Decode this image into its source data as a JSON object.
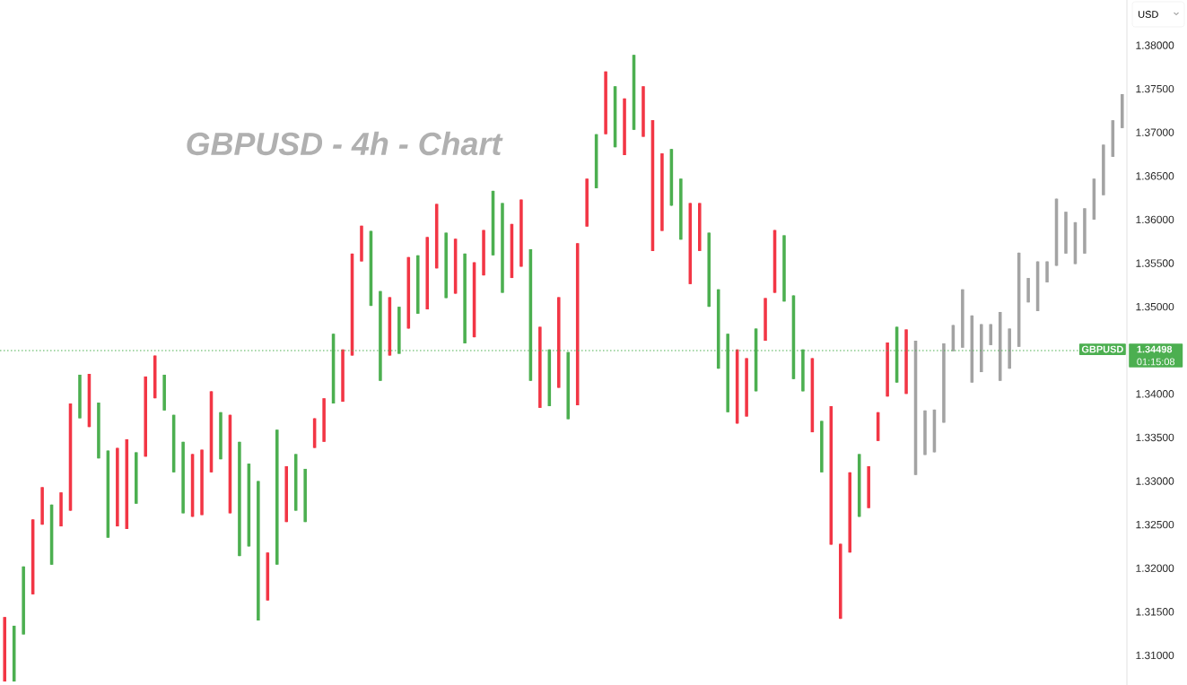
{
  "chart_data": {
    "type": "candlestick",
    "title": "GBPUSD - 4h - Chart",
    "categories": [
      null,
      null,
      null,
      null,
      null,
      null,
      null,
      null,
      null,
      null,
      null,
      null,
      null,
      null,
      null,
      null,
      null,
      null,
      null,
      null,
      null,
      null,
      null,
      null,
      null,
      null,
      null,
      null,
      null,
      null,
      null,
      null,
      null,
      null,
      null,
      null,
      null,
      null,
      null,
      null,
      null,
      null,
      null,
      null,
      null,
      null,
      null,
      null,
      null,
      null,
      null,
      null,
      null,
      null,
      null,
      null,
      null,
      null,
      null,
      null,
      null,
      null,
      null,
      null,
      null,
      null,
      null,
      null,
      null,
      null,
      null,
      null,
      null,
      null,
      null,
      null,
      null,
      null,
      null,
      null,
      null,
      null,
      null,
      null,
      null,
      null,
      null,
      null,
      null,
      null,
      null,
      null,
      null,
      null,
      null,
      null,
      null,
      null,
      null,
      null,
      null,
      null,
      null,
      null,
      null,
      null,
      null,
      null,
      null,
      null,
      null,
      null,
      null,
      null,
      null,
      null,
      null,
      null,
      null,
      null
    ],
    "ohlc": [
      [
        1.3144,
        1.3144,
        1.307,
        1.307
      ],
      [
        1.307,
        1.3134,
        1.307,
        1.3134
      ],
      [
        1.3124,
        1.3202,
        1.3124,
        1.3202
      ],
      [
        1.3256,
        1.3256,
        1.317,
        1.317
      ],
      [
        1.3293,
        1.3293,
        1.325,
        1.325
      ],
      [
        1.3204,
        1.3273,
        1.3204,
        1.3273
      ],
      [
        1.3287,
        1.3287,
        1.3248,
        1.3248
      ],
      [
        1.3389,
        1.3389,
        1.3266,
        1.3266
      ],
      [
        1.3372,
        1.3422,
        1.3372,
        1.3422
      ],
      [
        1.3423,
        1.3423,
        1.3362,
        1.3362
      ],
      [
        1.3326,
        1.339,
        1.3326,
        1.339
      ],
      [
        1.3235,
        1.3335,
        1.3235,
        1.3335
      ],
      [
        1.3338,
        1.3338,
        1.3248,
        1.3248
      ],
      [
        1.3348,
        1.3348,
        1.3245,
        1.3245
      ],
      [
        1.3274,
        1.3333,
        1.3274,
        1.3333
      ],
      [
        1.342,
        1.342,
        1.3328,
        1.3328
      ],
      [
        1.3444,
        1.3444,
        1.3395,
        1.3395
      ],
      [
        1.3381,
        1.3422,
        1.3381,
        1.3422
      ],
      [
        1.331,
        1.3376,
        1.331,
        1.3376
      ],
      [
        1.3263,
        1.3345,
        1.3263,
        1.3345
      ],
      [
        1.3331,
        1.3331,
        1.3259,
        1.3259
      ],
      [
        1.3336,
        1.3336,
        1.3261,
        1.3261
      ],
      [
        1.3403,
        1.3403,
        1.331,
        1.331
      ],
      [
        1.3325,
        1.3379,
        1.3325,
        1.3379
      ],
      [
        1.3376,
        1.3376,
        1.3263,
        1.3263
      ],
      [
        1.3214,
        1.3345,
        1.3214,
        1.3345
      ],
      [
        1.3225,
        1.332,
        1.3225,
        1.332
      ],
      [
        1.314,
        1.33,
        1.314,
        1.33
      ],
      [
        1.3218,
        1.3218,
        1.3163,
        1.3163
      ],
      [
        1.3204,
        1.3359,
        1.3204,
        1.3359
      ],
      [
        1.3317,
        1.3317,
        1.3253,
        1.3253
      ],
      [
        1.3266,
        1.3331,
        1.3266,
        1.3331
      ],
      [
        1.3253,
        1.3314,
        1.3253,
        1.3314
      ],
      [
        1.3372,
        1.3372,
        1.3338,
        1.3338
      ],
      [
        1.3395,
        1.3395,
        1.3345,
        1.3345
      ],
      [
        1.3389,
        1.3469,
        1.3389,
        1.3469
      ],
      [
        1.3451,
        1.3451,
        1.3391,
        1.3391
      ],
      [
        1.3561,
        1.3561,
        1.3444,
        1.3444
      ],
      [
        1.3593,
        1.3593,
        1.3552,
        1.3552
      ],
      [
        1.3501,
        1.3587,
        1.3501,
        1.3587
      ],
      [
        1.3415,
        1.3518,
        1.3415,
        1.3518
      ],
      [
        1.3511,
        1.3511,
        1.3444,
        1.3444
      ],
      [
        1.3446,
        1.35,
        1.3446,
        1.35
      ],
      [
        1.3557,
        1.3557,
        1.3475,
        1.3475
      ],
      [
        1.3492,
        1.3559,
        1.3492,
        1.3559
      ],
      [
        1.358,
        1.358,
        1.3497,
        1.3497
      ],
      [
        1.3618,
        1.3618,
        1.3544,
        1.3544
      ],
      [
        1.351,
        1.3585,
        1.351,
        1.3585
      ],
      [
        1.3578,
        1.3578,
        1.3515,
        1.3515
      ],
      [
        1.3458,
        1.3561,
        1.3458,
        1.3561
      ],
      [
        1.3551,
        1.3551,
        1.3465,
        1.3465
      ],
      [
        1.3588,
        1.3588,
        1.3536,
        1.3536
      ],
      [
        1.3559,
        1.3633,
        1.3559,
        1.3633
      ],
      [
        1.3516,
        1.3619,
        1.3516,
        1.3619
      ],
      [
        1.3595,
        1.3595,
        1.3533,
        1.3533
      ],
      [
        1.3623,
        1.3623,
        1.3546,
        1.3546
      ],
      [
        1.3415,
        1.3566,
        1.3415,
        1.3566
      ],
      [
        1.3477,
        1.3477,
        1.3384,
        1.3384
      ],
      [
        1.3386,
        1.3451,
        1.3386,
        1.3451
      ],
      [
        1.3511,
        1.3511,
        1.3407,
        1.3407
      ],
      [
        1.3371,
        1.3448,
        1.3371,
        1.3448
      ],
      [
        1.3573,
        1.3573,
        1.3387,
        1.3387
      ],
      [
        1.3647,
        1.3647,
        1.3592,
        1.3592
      ],
      [
        1.3636,
        1.3698,
        1.3636,
        1.3698
      ],
      [
        1.377,
        1.377,
        1.3698,
        1.3698
      ],
      [
        1.3683,
        1.3753,
        1.3683,
        1.3753
      ],
      [
        1.3739,
        1.3739,
        1.3674,
        1.3674
      ],
      [
        1.3703,
        1.3789,
        1.3703,
        1.3789
      ],
      [
        1.3753,
        1.3753,
        1.3695,
        1.3695
      ],
      [
        1.3714,
        1.3714,
        1.3564,
        1.3564
      ],
      [
        1.3676,
        1.3676,
        1.3587,
        1.3587
      ],
      [
        1.3616,
        1.3681,
        1.3616,
        1.3681
      ],
      [
        1.3577,
        1.3647,
        1.3577,
        1.3647
      ],
      [
        1.3619,
        1.3619,
        1.3526,
        1.3526
      ],
      [
        1.3619,
        1.3619,
        1.3564,
        1.3564
      ],
      [
        1.35,
        1.3585,
        1.35,
        1.3585
      ],
      [
        1.3429,
        1.352,
        1.3429,
        1.352
      ],
      [
        1.3379,
        1.3469,
        1.3379,
        1.3469
      ],
      [
        1.3451,
        1.3451,
        1.3366,
        1.3366
      ],
      [
        1.3441,
        1.3441,
        1.3374,
        1.3374
      ],
      [
        1.3403,
        1.3475,
        1.3403,
        1.3475
      ],
      [
        1.351,
        1.351,
        1.3461,
        1.3461
      ],
      [
        1.3588,
        1.3588,
        1.3516,
        1.3516
      ],
      [
        1.3506,
        1.3582,
        1.3506,
        1.3582
      ],
      [
        1.3417,
        1.3513,
        1.3417,
        1.3513
      ],
      [
        1.3403,
        1.3451,
        1.3403,
        1.3451
      ],
      [
        1.3441,
        1.3441,
        1.3356,
        1.3356
      ],
      [
        1.331,
        1.3369,
        1.331,
        1.3369
      ],
      [
        1.3386,
        1.3386,
        1.3227,
        1.3227
      ],
      [
        1.3228,
        1.3228,
        1.3142,
        1.3142
      ],
      [
        1.331,
        1.331,
        1.3218,
        1.3218
      ],
      [
        1.3259,
        1.3331,
        1.3259,
        1.3331
      ],
      [
        1.3317,
        1.3317,
        1.3269,
        1.3269
      ],
      [
        1.3379,
        1.3379,
        1.3346,
        1.3346
      ],
      [
        1.3459,
        1.3459,
        1.3397,
        1.3397
      ],
      [
        1.3413,
        1.3477,
        1.3413,
        1.3477
      ],
      [
        1.3474,
        1.3474,
        1.34,
        1.34
      ],
      [
        1.3307,
        1.3461,
        1.3307,
        1.3461
      ],
      [
        1.333,
        1.3381,
        1.333,
        1.3381
      ],
      [
        1.3333,
        1.3382,
        1.3333,
        1.3382
      ],
      [
        1.3367,
        1.3458,
        1.3367,
        1.3458
      ],
      [
        1.3449,
        1.3479,
        1.3449,
        1.3479
      ],
      [
        1.3453,
        1.352,
        1.3453,
        1.352
      ],
      [
        1.3413,
        1.349,
        1.3413,
        1.349
      ],
      [
        1.3425,
        1.348,
        1.3425,
        1.348
      ],
      [
        1.3456,
        1.348,
        1.3456,
        1.348
      ],
      [
        1.3415,
        1.3494,
        1.3415,
        1.3494
      ],
      [
        1.3429,
        1.3475,
        1.3429,
        1.3475
      ],
      [
        1.3454,
        1.3562,
        1.3454,
        1.3562
      ],
      [
        1.3505,
        1.3533,
        1.3505,
        1.3533
      ],
      [
        1.3495,
        1.3552,
        1.3495,
        1.3552
      ],
      [
        1.3528,
        1.3552,
        1.3528,
        1.3552
      ],
      [
        1.3547,
        1.3624,
        1.3547,
        1.3624
      ],
      [
        1.3561,
        1.3609,
        1.3561,
        1.3609
      ],
      [
        1.3549,
        1.3597,
        1.3549,
        1.3597
      ],
      [
        1.3561,
        1.3613,
        1.3561,
        1.3613
      ],
      [
        1.36,
        1.3647,
        1.36,
        1.3647
      ],
      [
        1.3628,
        1.3686,
        1.3628,
        1.3686
      ],
      [
        1.3672,
        1.3714,
        1.3672,
        1.3714
      ],
      [
        1.3705,
        1.3744,
        1.3705,
        1.3744
      ]
    ],
    "colors": [
      "#f23645",
      "#4caf50",
      "#4caf50",
      "#f23645",
      "#f23645",
      "#4caf50",
      "#f23645",
      "#f23645",
      "#4caf50",
      "#f23645",
      "#4caf50",
      "#4caf50",
      "#f23645",
      "#f23645",
      "#4caf50",
      "#f23645",
      "#f23645",
      "#4caf50",
      "#4caf50",
      "#4caf50",
      "#f23645",
      "#f23645",
      "#f23645",
      "#4caf50",
      "#f23645",
      "#4caf50",
      "#4caf50",
      "#4caf50",
      "#f23645",
      "#4caf50",
      "#f23645",
      "#4caf50",
      "#4caf50",
      "#f23645",
      "#f23645",
      "#4caf50",
      "#f23645",
      "#f23645",
      "#f23645",
      "#4caf50",
      "#4caf50",
      "#f23645",
      "#4caf50",
      "#f23645",
      "#4caf50",
      "#f23645",
      "#f23645",
      "#4caf50",
      "#f23645",
      "#4caf50",
      "#f23645",
      "#f23645",
      "#4caf50",
      "#4caf50",
      "#f23645",
      "#f23645",
      "#4caf50",
      "#f23645",
      "#4caf50",
      "#f23645",
      "#4caf50",
      "#f23645",
      "#f23645",
      "#4caf50",
      "#f23645",
      "#4caf50",
      "#f23645",
      "#4caf50",
      "#f23645",
      "#f23645",
      "#f23645",
      "#4caf50",
      "#4caf50",
      "#f23645",
      "#f23645",
      "#4caf50",
      "#4caf50",
      "#4caf50",
      "#f23645",
      "#f23645",
      "#4caf50",
      "#f23645",
      "#f23645",
      "#4caf50",
      "#4caf50",
      "#4caf50",
      "#f23645",
      "#4caf50",
      "#f23645",
      "#f23645",
      "#f23645",
      "#4caf50",
      "#f23645",
      "#f23645",
      "#f23645",
      "#4caf50",
      "#f23645",
      "#a3a3a3",
      "#a3a3a3",
      "#a3a3a3",
      "#a3a3a3",
      "#a3a3a3",
      "#a3a3a3",
      "#a3a3a3",
      "#a3a3a3",
      "#a3a3a3",
      "#a3a3a3",
      "#a3a3a3",
      "#a3a3a3",
      "#a3a3a3",
      "#a3a3a3",
      "#a3a3a3",
      "#a3a3a3",
      "#a3a3a3",
      "#a3a3a3",
      "#a3a3a3",
      "#a3a3a3",
      "#a3a3a3",
      "#a3a3a3",
      "#a3a3a3"
    ],
    "ylim": [
      1.3066,
      1.3852
    ],
    "yticks": [
      {
        "value": 1.31,
        "label": "1.31000"
      },
      {
        "value": 1.315,
        "label": "1.31500"
      },
      {
        "value": 1.32,
        "label": "1.32000"
      },
      {
        "value": 1.325,
        "label": "1.32500"
      },
      {
        "value": 1.33,
        "label": "1.33000"
      },
      {
        "value": 1.335,
        "label": "1.33500"
      },
      {
        "value": 1.34,
        "label": "1.34000"
      },
      {
        "value": 1.35,
        "label": "1.35000"
      },
      {
        "value": 1.355,
        "label": "1.35500"
      },
      {
        "value": 1.36,
        "label": "1.36000"
      },
      {
        "value": 1.365,
        "label": "1.36500"
      },
      {
        "value": 1.37,
        "label": "1.37000"
      },
      {
        "value": 1.375,
        "label": "1.37500"
      },
      {
        "value": 1.38,
        "label": "1.38000"
      }
    ],
    "tick_labels": "y",
    "ref_lines": [
      {
        "axis": "y",
        "value": 1.34498,
        "label": "GBPUSD",
        "color": "#4caf50",
        "line_style": "dotted"
      }
    ],
    "annotations": [
      "USD",
      "1.34498",
      "01:15:08"
    ]
  }
}
